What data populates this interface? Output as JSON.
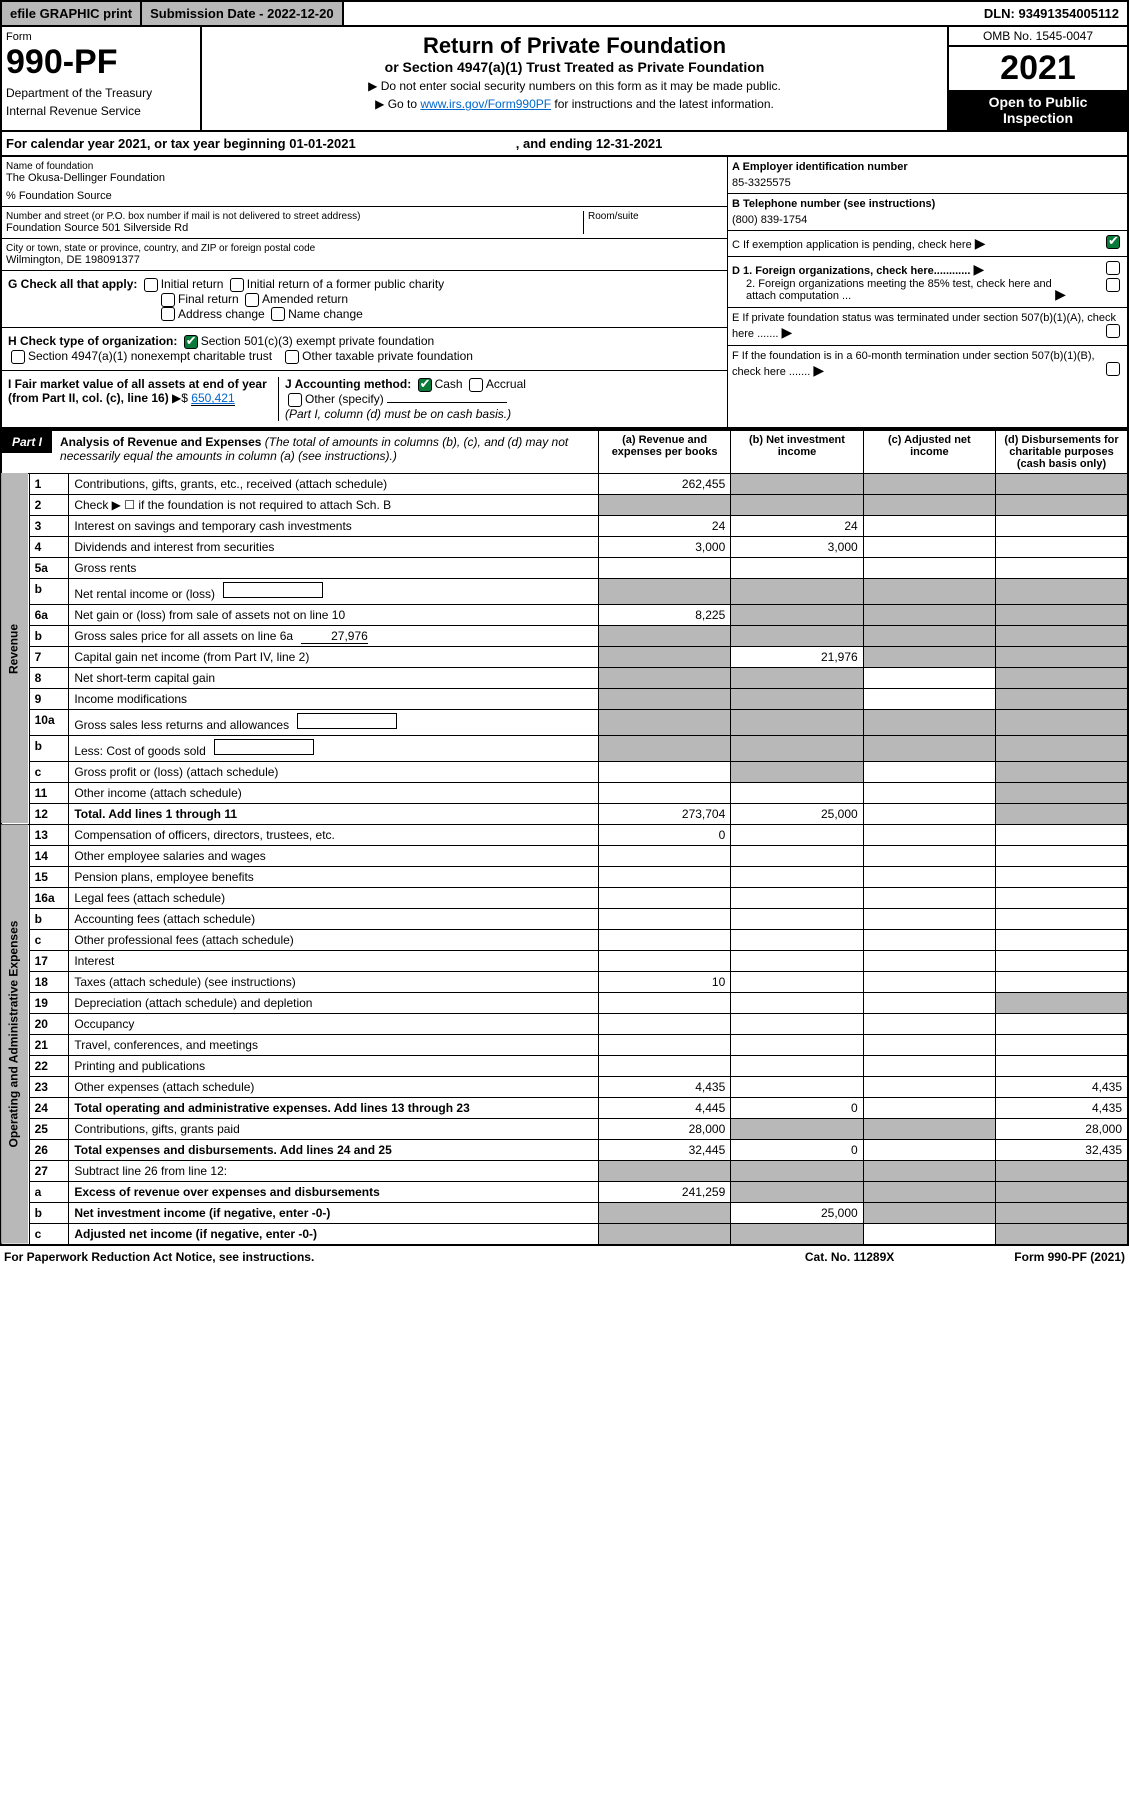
{
  "top": {
    "efile": "efile GRAPHIC print",
    "sub_date_label": "Submission Date - 2022-12-20",
    "dln": "DLN: 93491354005112"
  },
  "header": {
    "form_label": "Form",
    "form_num": "990-PF",
    "dept": "Department of the Treasury",
    "irs": "Internal Revenue Service",
    "title": "Return of Private Foundation",
    "subtitle": "or Section 4947(a)(1) Trust Treated as Private Foundation",
    "instr1": "▶ Do not enter social security numbers on this form as it may be made public.",
    "instr2_pre": "▶ Go to ",
    "instr2_link": "www.irs.gov/Form990PF",
    "instr2_post": " for instructions and the latest information.",
    "omb": "OMB No. 1545-0047",
    "year": "2021",
    "open": "Open to Public Inspection"
  },
  "cal": {
    "pre": "For calendar year 2021, or tax year beginning 01-01-2021",
    "end": ", and ending 12-31-2021"
  },
  "id": {
    "name_lbl": "Name of foundation",
    "name": "The Okusa-Dellinger Foundation",
    "care": "% Foundation Source",
    "addr_lbl": "Number and street (or P.O. box number if mail is not delivered to street address)",
    "addr": "Foundation Source 501 Silverside Rd",
    "room_lbl": "Room/suite",
    "city_lbl": "City or town, state or province, country, and ZIP or foreign postal code",
    "city": "Wilmington, DE  198091377",
    "a_lbl": "A Employer identification number",
    "a_val": "85-3325575",
    "b_lbl": "B Telephone number (see instructions)",
    "b_val": "(800) 839-1754",
    "c_lbl": "C If exemption application is pending, check here",
    "d1": "D 1. Foreign organizations, check here............",
    "d2": "2. Foreign organizations meeting the 85% test, check here and attach computation ...",
    "e": "E  If private foundation status was terminated under section 507(b)(1)(A), check here .......",
    "f": "F  If the foundation is in a 60-month termination under section 507(b)(1)(B), check here .......",
    "g": "G Check all that apply:",
    "g_opts": [
      "Initial return",
      "Initial return of a former public charity",
      "Final return",
      "Amended return",
      "Address change",
      "Name change"
    ],
    "h": "H Check type of organization:",
    "h1": "Section 501(c)(3) exempt private foundation",
    "h2": "Section 4947(a)(1) nonexempt charitable trust",
    "h3": "Other taxable private foundation",
    "i": "I Fair market value of all assets at end of year (from Part II, col. (c), line 16)",
    "i_val": "650,421",
    "j": "J Accounting method:",
    "j_opts": [
      "Cash",
      "Accrual"
    ],
    "j_other": "Other (specify)",
    "j_note": "(Part I, column (d) must be on cash basis.)"
  },
  "part1": {
    "tag": "Part I",
    "title": "Analysis of Revenue and Expenses",
    "note": "(The total of amounts in columns (b), (c), and (d) may not necessarily equal the amounts in column (a) (see instructions).)",
    "cols": {
      "a": "(a) Revenue and expenses per books",
      "b": "(b) Net investment income",
      "c": "(c) Adjusted net income",
      "d": "(d) Disbursements for charitable purposes (cash basis only)"
    }
  },
  "side": {
    "rev": "Revenue",
    "exp": "Operating and Administrative Expenses"
  },
  "rows": [
    {
      "n": "1",
      "d": "Contributions, gifts, grants, etc., received (attach schedule)",
      "a": "262,455",
      "shade_bcd": true
    },
    {
      "n": "2",
      "d": "Check ▶ ☐ if the foundation is not required to attach Sch. B",
      "dots": true,
      "shade_a": true,
      "shade_bcd": true
    },
    {
      "n": "3",
      "d": "Interest on savings and temporary cash investments",
      "a": "24",
      "b": "24"
    },
    {
      "n": "4",
      "d": "Dividends and interest from securities",
      "dots": true,
      "a": "3,000",
      "b": "3,000"
    },
    {
      "n": "5a",
      "d": "Gross rents",
      "dots": true
    },
    {
      "n": "b",
      "d": "Net rental income or (loss)",
      "inline": true,
      "shade_all": true
    },
    {
      "n": "6a",
      "d": "Net gain or (loss) from sale of assets not on line 10",
      "a": "8,225",
      "shade_bcd": true
    },
    {
      "n": "b",
      "d": "Gross sales price for all assets on line 6a",
      "val_inline": "27,976",
      "shade_all": true
    },
    {
      "n": "7",
      "d": "Capital gain net income (from Part IV, line 2)",
      "dots": true,
      "shade_a": true,
      "b": "21,976",
      "shade_cd": true
    },
    {
      "n": "8",
      "d": "Net short-term capital gain",
      "dots": true,
      "shade_ab": true,
      "shade_d": true
    },
    {
      "n": "9",
      "d": "Income modifications",
      "dots": true,
      "shade_ab": true,
      "shade_d": true
    },
    {
      "n": "10a",
      "d": "Gross sales less returns and allowances",
      "inline": true,
      "shade_all": true
    },
    {
      "n": "b",
      "d": "Less: Cost of goods sold",
      "dots": true,
      "inline": true,
      "shade_all": true
    },
    {
      "n": "c",
      "d": "Gross profit or (loss) (attach schedule)",
      "dots": true,
      "shade_bd": true
    },
    {
      "n": "11",
      "d": "Other income (attach schedule)",
      "dots": true,
      "shade_d": true
    },
    {
      "n": "12",
      "d": "Total. Add lines 1 through 11",
      "dots": true,
      "bold": true,
      "a": "273,704",
      "b": "25,000",
      "shade_d": true
    },
    {
      "n": "13",
      "d": "Compensation of officers, directors, trustees, etc.",
      "a": "0"
    },
    {
      "n": "14",
      "d": "Other employee salaries and wages",
      "dots": true
    },
    {
      "n": "15",
      "d": "Pension plans, employee benefits",
      "dots": true
    },
    {
      "n": "16a",
      "d": "Legal fees (attach schedule)",
      "dots": true
    },
    {
      "n": "b",
      "d": "Accounting fees (attach schedule)",
      "dots": true
    },
    {
      "n": "c",
      "d": "Other professional fees (attach schedule)",
      "dots": true
    },
    {
      "n": "17",
      "d": "Interest",
      "dots": true
    },
    {
      "n": "18",
      "d": "Taxes (attach schedule) (see instructions)",
      "dots": true,
      "a": "10"
    },
    {
      "n": "19",
      "d": "Depreciation (attach schedule) and depletion",
      "dots": true,
      "shade_d": true
    },
    {
      "n": "20",
      "d": "Occupancy",
      "dots": true
    },
    {
      "n": "21",
      "d": "Travel, conferences, and meetings",
      "dots": true
    },
    {
      "n": "22",
      "d": "Printing and publications",
      "dots": true
    },
    {
      "n": "23",
      "d": "Other expenses (attach schedule)",
      "dots": true,
      "a": "4,435",
      "d_": "4,435"
    },
    {
      "n": "24",
      "d": "Total operating and administrative expenses. Add lines 13 through 23",
      "dots": true,
      "bold": true,
      "a": "4,445",
      "b": "0",
      "d_": "4,435"
    },
    {
      "n": "25",
      "d": "Contributions, gifts, grants paid",
      "dots": true,
      "a": "28,000",
      "shade_bc": true,
      "d_": "28,000"
    },
    {
      "n": "26",
      "d": "Total expenses and disbursements. Add lines 24 and 25",
      "bold": true,
      "a": "32,445",
      "b": "0",
      "d_": "32,435"
    },
    {
      "n": "27",
      "d": "Subtract line 26 from line 12:",
      "shade_all": true
    },
    {
      "n": "a",
      "d": "Excess of revenue over expenses and disbursements",
      "bold": true,
      "a": "241,259",
      "shade_bcd": true
    },
    {
      "n": "b",
      "d": "Net investment income (if negative, enter -0-)",
      "bold": true,
      "shade_a": true,
      "b": "25,000",
      "shade_cd": true
    },
    {
      "n": "c",
      "d": "Adjusted net income (if negative, enter -0-)",
      "bold": true,
      "dots": true,
      "shade_ab": true,
      "shade_d": true
    }
  ],
  "footer": {
    "left": "For Paperwork Reduction Act Notice, see instructions.",
    "mid": "Cat. No. 11289X",
    "right": "Form 990-PF (2021)"
  }
}
